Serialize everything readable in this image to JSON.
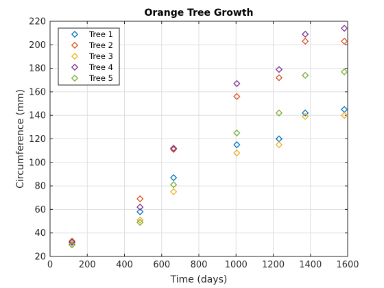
{
  "chart_data": {
    "type": "scatter",
    "title": "Orange Tree Growth",
    "xlabel": "Time (days)",
    "ylabel": "Circumference (mm)",
    "xlim": [
      0,
      1600
    ],
    "ylim": [
      20,
      220
    ],
    "xticks": [
      0,
      200,
      400,
      600,
      800,
      1000,
      1200,
      1400,
      1600
    ],
    "yticks": [
      20,
      40,
      60,
      80,
      100,
      120,
      140,
      160,
      180,
      200,
      220
    ],
    "grid": true,
    "legend_position": "top-left",
    "marker": "diamond",
    "x": [
      118,
      484,
      664,
      1004,
      1231,
      1372,
      1582
    ],
    "series": [
      {
        "name": "Tree 1",
        "color": "#0072BD",
        "values": [
          30,
          58,
          87,
          115,
          120,
          142,
          145
        ]
      },
      {
        "name": "Tree 2",
        "color": "#D95319",
        "values": [
          33,
          69,
          111,
          156,
          172,
          203,
          203
        ]
      },
      {
        "name": "Tree 3",
        "color": "#EDB120",
        "values": [
          30,
          51,
          75,
          108,
          115,
          139,
          140
        ]
      },
      {
        "name": "Tree 4",
        "color": "#7E2F8E",
        "values": [
          32,
          62,
          112,
          167,
          179,
          209,
          214
        ]
      },
      {
        "name": "Tree 5",
        "color": "#77AC30",
        "values": [
          30,
          49,
          81,
          125,
          142,
          174,
          177
        ]
      }
    ]
  }
}
